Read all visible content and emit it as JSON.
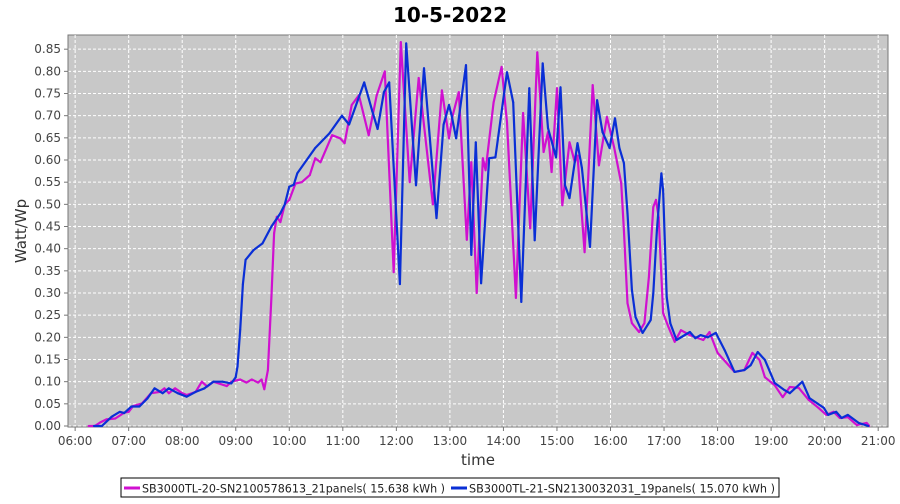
{
  "chart_data": {
    "type": "line",
    "title": "10-5-2022",
    "xlabel": "time",
    "ylabel": "Watt/Wp",
    "xlim": [
      "05:52",
      "21:11"
    ],
    "ylim": [
      0,
      0.882
    ],
    "grid": true,
    "legend_position": "bottom",
    "x_ticks": [
      "06:00",
      "07:00",
      "08:00",
      "09:00",
      "10:00",
      "11:00",
      "12:00",
      "13:00",
      "14:00",
      "15:00",
      "16:00",
      "17:00",
      "18:00",
      "19:00",
      "20:00",
      "21:00"
    ],
    "y_ticks": [
      "0.00",
      "0.05",
      "0.10",
      "0.15",
      "0.20",
      "0.25",
      "0.30",
      "0.35",
      "0.40",
      "0.45",
      "0.50",
      "0.55",
      "0.60",
      "0.65",
      "0.70",
      "0.75",
      "0.80",
      "0.85"
    ],
    "background_color": "#c8c8c8",
    "series": [
      {
        "name": "SB3000TL-20-SN2100578613_21panels( 15.638 kWh )",
        "color": "#d010d0",
        "points": [
          [
            "06:15",
            0
          ],
          [
            "06:22",
            0
          ],
          [
            "06:28",
            0.008
          ],
          [
            "06:35",
            0.015
          ],
          [
            "06:45",
            0.017
          ],
          [
            "06:55",
            0.03
          ],
          [
            "07:00",
            0.032
          ],
          [
            "07:05",
            0.045
          ],
          [
            "07:15",
            0.051
          ],
          [
            "07:25",
            0.074
          ],
          [
            "07:35",
            0.077
          ],
          [
            "07:40",
            0.085
          ],
          [
            "07:45",
            0.074
          ],
          [
            "07:52",
            0.085
          ],
          [
            "08:00",
            0.074
          ],
          [
            "08:05",
            0.07
          ],
          [
            "08:15",
            0.077
          ],
          [
            "08:22",
            0.1
          ],
          [
            "08:28",
            0.089
          ],
          [
            "08:35",
            0.1
          ],
          [
            "08:50",
            0.09
          ],
          [
            "08:55",
            0.1
          ],
          [
            "09:05",
            0.105
          ],
          [
            "09:12",
            0.098
          ],
          [
            "09:18",
            0.105
          ],
          [
            "09:25",
            0.098
          ],
          [
            "09:29",
            0.105
          ],
          [
            "09:32",
            0.083
          ],
          [
            "09:36",
            0.126
          ],
          [
            "09:40",
            0.29
          ],
          [
            "09:43",
            0.435
          ],
          [
            "09:46",
            0.472
          ],
          [
            "09:50",
            0.46
          ],
          [
            "09:55",
            0.5
          ],
          [
            "10:00",
            0.51
          ],
          [
            "10:07",
            0.547
          ],
          [
            "10:14",
            0.55
          ],
          [
            "10:23",
            0.566
          ],
          [
            "10:29",
            0.604
          ],
          [
            "10:35",
            0.595
          ],
          [
            "10:48",
            0.656
          ],
          [
            "10:57",
            0.649
          ],
          [
            "11:02",
            0.638
          ],
          [
            "11:10",
            0.724
          ],
          [
            "11:18",
            0.746
          ],
          [
            "11:29",
            0.656
          ],
          [
            "11:38",
            0.746
          ],
          [
            "11:47",
            0.8
          ],
          [
            "11:57",
            0.347
          ],
          [
            "12:05",
            0.866
          ],
          [
            "12:15",
            0.55
          ],
          [
            "12:25",
            0.785
          ],
          [
            "12:41",
            0.5
          ],
          [
            "12:51",
            0.757
          ],
          [
            "12:59",
            0.649
          ],
          [
            "13:03",
            0.7
          ],
          [
            "13:10",
            0.753
          ],
          [
            "13:19",
            0.42
          ],
          [
            "13:24",
            0.595
          ],
          [
            "13:30",
            0.3
          ],
          [
            "13:37",
            0.604
          ],
          [
            "13:40",
            0.577
          ],
          [
            "13:49",
            0.73
          ],
          [
            "13:58",
            0.81
          ],
          [
            "14:04",
            0.685
          ],
          [
            "14:14",
            0.289
          ],
          [
            "14:22",
            0.706
          ],
          [
            "14:30",
            0.446
          ],
          [
            "14:38",
            0.843
          ],
          [
            "14:45",
            0.618
          ],
          [
            "14:50",
            0.663
          ],
          [
            "14:54",
            0.573
          ],
          [
            "15:00",
            0.762
          ],
          [
            "15:06",
            0.498
          ],
          [
            "15:14",
            0.64
          ],
          [
            "15:20",
            0.595
          ],
          [
            "15:23",
            0.61
          ],
          [
            "15:31",
            0.392
          ],
          [
            "15:40",
            0.769
          ],
          [
            "15:47",
            0.588
          ],
          [
            "15:56",
            0.697
          ],
          [
            "16:04",
            0.629
          ],
          [
            "16:12",
            0.548
          ],
          [
            "16:15",
            0.442
          ],
          [
            "16:19",
            0.277
          ],
          [
            "16:24",
            0.232
          ],
          [
            "16:32",
            0.212
          ],
          [
            "16:38",
            0.232
          ],
          [
            "16:43",
            0.336
          ],
          [
            "16:48",
            0.494
          ],
          [
            "16:51",
            0.51
          ],
          [
            "16:54",
            0.47
          ],
          [
            "16:59",
            0.255
          ],
          [
            "17:05",
            0.223
          ],
          [
            "17:12",
            0.19
          ],
          [
            "17:19",
            0.216
          ],
          [
            "17:29",
            0.205
          ],
          [
            "17:44",
            0.194
          ],
          [
            "17:51",
            0.212
          ],
          [
            "18:00",
            0.165
          ],
          [
            "18:19",
            0.122
          ],
          [
            "18:30",
            0.126
          ],
          [
            "18:39",
            0.165
          ],
          [
            "18:47",
            0.149
          ],
          [
            "18:53",
            0.11
          ],
          [
            "19:04",
            0.092
          ],
          [
            "19:13",
            0.065
          ],
          [
            "19:21",
            0.088
          ],
          [
            "19:31",
            0.086
          ],
          [
            "19:42",
            0.059
          ],
          [
            "19:53",
            0.041
          ],
          [
            "20:02",
            0.025
          ],
          [
            "20:10",
            0.032
          ],
          [
            "20:17",
            0.018
          ],
          [
            "20:26",
            0.02
          ],
          [
            "20:36",
            0.002
          ],
          [
            "20:47",
            0.007
          ],
          [
            "20:50",
            0
          ]
        ]
      },
      {
        "name": "SB3000TL-21-SN2130032031_19panels( 15.070 kWh )",
        "color": "#0a2fd6",
        "points": [
          [
            "06:21",
            0
          ],
          [
            "06:30",
            0
          ],
          [
            "06:41",
            0.021
          ],
          [
            "06:50",
            0.032
          ],
          [
            "06:55",
            0.029
          ],
          [
            "07:03",
            0.044
          ],
          [
            "07:12",
            0.044
          ],
          [
            "07:21",
            0.062
          ],
          [
            "07:29",
            0.085
          ],
          [
            "07:38",
            0.074
          ],
          [
            "07:45",
            0.085
          ],
          [
            "07:55",
            0.074
          ],
          [
            "08:05",
            0.066
          ],
          [
            "08:15",
            0.077
          ],
          [
            "08:25",
            0.085
          ],
          [
            "08:35",
            0.1
          ],
          [
            "08:45",
            0.1
          ],
          [
            "08:55",
            0.096
          ],
          [
            "09:00",
            0.11
          ],
          [
            "09:02",
            0.134
          ],
          [
            "09:05",
            0.217
          ],
          [
            "09:08",
            0.32
          ],
          [
            "09:11",
            0.375
          ],
          [
            "09:20",
            0.397
          ],
          [
            "09:30",
            0.412
          ],
          [
            "09:40",
            0.45
          ],
          [
            "09:50",
            0.48
          ],
          [
            "09:55",
            0.5
          ],
          [
            "10:00",
            0.54
          ],
          [
            "10:05",
            0.544
          ],
          [
            "10:09",
            0.57
          ],
          [
            "10:29",
            0.627
          ],
          [
            "10:45",
            0.66
          ],
          [
            "10:59",
            0.7
          ],
          [
            "11:07",
            0.68
          ],
          [
            "11:24",
            0.775
          ],
          [
            "11:33",
            0.71
          ],
          [
            "11:39",
            0.67
          ],
          [
            "11:46",
            0.753
          ],
          [
            "11:52",
            0.775
          ],
          [
            "12:04",
            0.32
          ],
          [
            "12:11",
            0.863
          ],
          [
            "12:22",
            0.543
          ],
          [
            "12:31",
            0.807
          ],
          [
            "12:45",
            0.469
          ],
          [
            "12:53",
            0.68
          ],
          [
            "12:59",
            0.724
          ],
          [
            "13:02",
            0.7
          ],
          [
            "13:07",
            0.649
          ],
          [
            "13:18",
            0.814
          ],
          [
            "13:24",
            0.386
          ],
          [
            "13:29",
            0.64
          ],
          [
            "13:35",
            0.322
          ],
          [
            "13:44",
            0.604
          ],
          [
            "13:51",
            0.606
          ],
          [
            "14:04",
            0.798
          ],
          [
            "14:11",
            0.73
          ],
          [
            "14:20",
            0.28
          ],
          [
            "14:29",
            0.762
          ],
          [
            "14:35",
            0.419
          ],
          [
            "14:44",
            0.818
          ],
          [
            "14:50",
            0.672
          ],
          [
            "14:59",
            0.606
          ],
          [
            "15:04",
            0.764
          ],
          [
            "15:09",
            0.543
          ],
          [
            "15:14",
            0.514
          ],
          [
            "15:23",
            0.638
          ],
          [
            "15:28",
            0.582
          ],
          [
            "15:37",
            0.404
          ],
          [
            "15:45",
            0.735
          ],
          [
            "15:51",
            0.663
          ],
          [
            "15:59",
            0.627
          ],
          [
            "16:05",
            0.694
          ],
          [
            "16:10",
            0.627
          ],
          [
            "16:15",
            0.593
          ],
          [
            "16:19",
            0.48
          ],
          [
            "16:24",
            0.307
          ],
          [
            "16:28",
            0.246
          ],
          [
            "16:36",
            0.21
          ],
          [
            "16:45",
            0.239
          ],
          [
            "16:48",
            0.3
          ],
          [
            "16:52",
            0.442
          ],
          [
            "16:57",
            0.57
          ],
          [
            "16:59",
            0.532
          ],
          [
            "17:03",
            0.291
          ],
          [
            "17:07",
            0.232
          ],
          [
            "17:14",
            0.194
          ],
          [
            "17:29",
            0.212
          ],
          [
            "17:35",
            0.198
          ],
          [
            "17:41",
            0.205
          ],
          [
            "17:49",
            0.2
          ],
          [
            "17:58",
            0.21
          ],
          [
            "18:08",
            0.171
          ],
          [
            "18:19",
            0.122
          ],
          [
            "18:30",
            0.126
          ],
          [
            "18:37",
            0.137
          ],
          [
            "18:45",
            0.167
          ],
          [
            "18:53",
            0.149
          ],
          [
            "19:04",
            0.097
          ],
          [
            "19:15",
            0.081
          ],
          [
            "19:21",
            0.074
          ],
          [
            "19:35",
            0.1
          ],
          [
            "19:43",
            0.063
          ],
          [
            "19:59",
            0.041
          ],
          [
            "20:04",
            0.025
          ],
          [
            "20:13",
            0.032
          ],
          [
            "20:19",
            0.018
          ],
          [
            "20:26",
            0.025
          ],
          [
            "20:38",
            0.007
          ],
          [
            "20:49",
            0
          ]
        ]
      }
    ]
  }
}
